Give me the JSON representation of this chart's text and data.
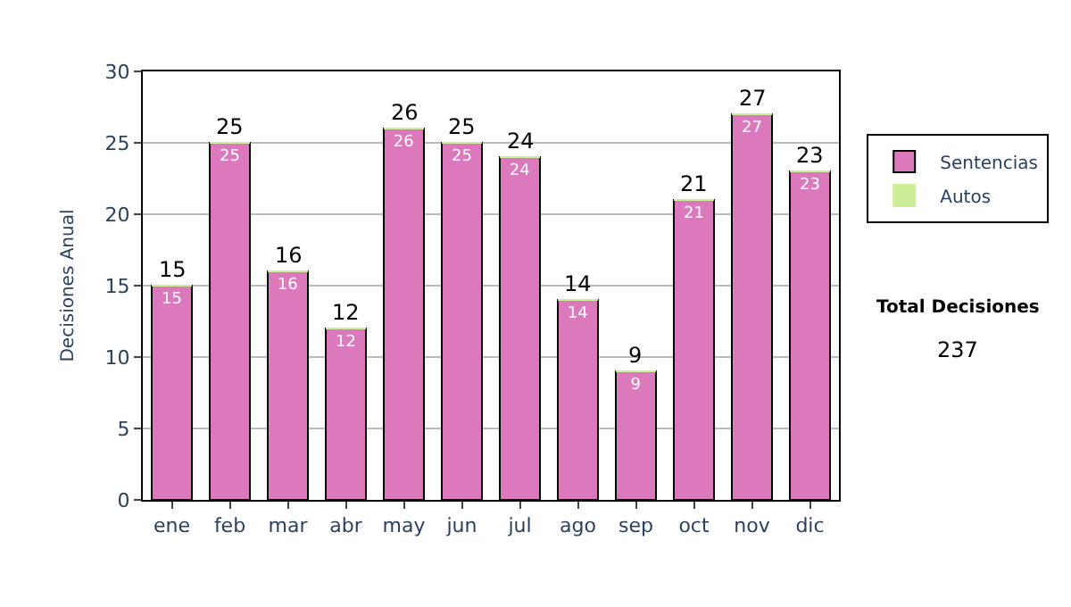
{
  "chart_data": {
    "type": "bar",
    "stacked": true,
    "ylabel": "Decisiones Anual",
    "categories": [
      "ene",
      "feb",
      "mar",
      "abr",
      "may",
      "jun",
      "jul",
      "ago",
      "sep",
      "oct",
      "nov",
      "dic"
    ],
    "series": [
      {
        "name": "Sentencias",
        "color": "#dc78bc",
        "values": [
          15,
          25,
          16,
          12,
          26,
          25,
          24,
          14,
          9,
          21,
          27,
          23
        ],
        "value_labels": [
          "15",
          "25",
          "16",
          "12",
          "26",
          "25",
          "24",
          "14",
          "9",
          "21",
          "27",
          "23"
        ]
      },
      {
        "name": "Autos",
        "color": "#ccee99",
        "values": [
          0,
          0,
          0,
          0,
          0,
          0,
          0,
          0,
          0,
          0,
          0,
          0
        ],
        "value_labels": [
          null,
          null,
          null,
          null,
          null,
          null,
          null,
          null,
          null,
          null,
          null,
          null
        ]
      }
    ],
    "totals": [
      "15",
      "25",
      "16",
      "12",
      "26",
      "25",
      "24",
      "14",
      "9",
      "21",
      "27",
      "23"
    ],
    "ylim": [
      0,
      30
    ],
    "yticks": [
      0,
      5,
      10,
      15,
      20,
      25,
      30
    ],
    "grid": "y",
    "legend": "right",
    "annotations": [
      "Total Decisiones",
      "237"
    ]
  }
}
